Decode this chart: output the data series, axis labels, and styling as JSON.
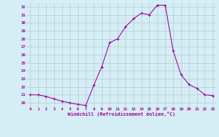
{
  "x": [
    0,
    1,
    2,
    3,
    4,
    5,
    6,
    7,
    8,
    9,
    10,
    11,
    12,
    13,
    14,
    15,
    16,
    17,
    18,
    19,
    20,
    21,
    22,
    23
  ],
  "y": [
    21.0,
    21.0,
    20.8,
    20.5,
    20.2,
    20.0,
    19.8,
    19.7,
    22.2,
    24.5,
    27.5,
    28.0,
    29.5,
    30.5,
    31.2,
    31.0,
    32.2,
    32.2,
    26.5,
    23.5,
    22.3,
    21.8,
    21.0,
    20.9
  ],
  "line_color": "#990099",
  "marker": "+",
  "bg_color": "#d5eef5",
  "grid_color": "#b0c8d0",
  "xlabel": "Windchill (Refroidissement éolien,°C)",
  "ylabel_ticks": [
    20,
    21,
    22,
    23,
    24,
    25,
    26,
    27,
    28,
    29,
    30,
    31,
    32
  ],
  "xlim": [
    -0.5,
    23.5
  ],
  "ylim": [
    19.5,
    32.5
  ]
}
